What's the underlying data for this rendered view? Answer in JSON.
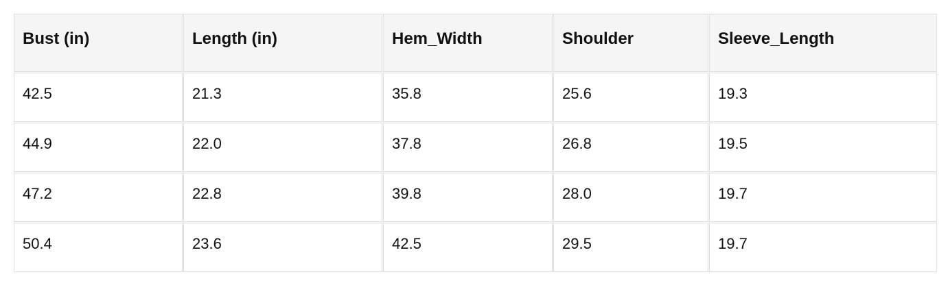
{
  "table": {
    "header": [
      "Bust (in)",
      "Length (in)",
      "Hem_Width",
      "Shoulder",
      "Sleeve_Length"
    ],
    "rows": [
      [
        "42.5",
        "21.3",
        "35.8",
        "25.6",
        "19.3"
      ],
      [
        "44.9",
        "22.0",
        "37.8",
        "26.8",
        "19.5"
      ],
      [
        "47.2",
        "22.8",
        "39.8",
        "28.0",
        "19.7"
      ],
      [
        "50.4",
        "23.6",
        "42.5",
        "29.5",
        "19.7"
      ]
    ]
  }
}
